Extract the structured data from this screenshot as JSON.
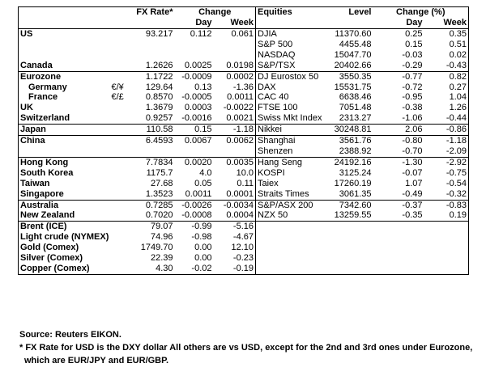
{
  "header": {
    "fx_rate": "FX Rate*",
    "change": "Change",
    "equities": "Equities",
    "level": "Level",
    "change_pct": "Change (%)",
    "day": "Day",
    "week": "Week",
    "day_pct": "Day",
    "week_pct": "Week"
  },
  "groups": [
    [
      {
        "country": "US",
        "fx": "93.217",
        "day": "0.112",
        "week": "0.061",
        "index": "DJIA",
        "level": "11370.60",
        "day_pct": "0.25",
        "week_pct": "0.35"
      },
      {
        "index": "S&P 500",
        "level": "4455.48",
        "day_pct": "0.15",
        "week_pct": "0.51"
      },
      {
        "index": "NASDAQ",
        "level": "15047.70",
        "day_pct": "-0.03",
        "week_pct": "0.02"
      },
      {
        "country": "Canada",
        "fx": "1.2626",
        "day": "0.0025",
        "week": "0.0198",
        "index": "S&P/TSX",
        "level": "20402.66",
        "day_pct": "-0.29",
        "week_pct": "-0.43"
      }
    ],
    [
      {
        "country": "Eurozone",
        "fx": "1.1722",
        "day": "-0.0009",
        "week": "0.0002",
        "index": "DJ Eurostox 50",
        "level": "3550.35",
        "day_pct": "-0.77",
        "week_pct": "0.82"
      },
      {
        "country": "Germany",
        "pair": "€/¥",
        "fx": "129.64",
        "day": "0.13",
        "week": "-1.36",
        "index": "DAX",
        "level": "15531.75",
        "day_pct": "-0.72",
        "week_pct": "0.27"
      },
      {
        "country": "France",
        "pair": "€/£",
        "fx": "0.8570",
        "day": "-0.0005",
        "week": "0.0011",
        "index": "CAC 40",
        "level": "6638.46",
        "day_pct": "-0.95",
        "week_pct": "1.04"
      },
      {
        "country": "UK",
        "fx": "1.3679",
        "day": "0.0003",
        "week": "-0.0022",
        "index": "FTSE 100",
        "level": "7051.48",
        "day_pct": "-0.38",
        "week_pct": "1.26"
      },
      {
        "country": "Switzerland",
        "fx": "0.9257",
        "day": "-0.0016",
        "week": "0.0021",
        "index": "Swiss Mkt Index",
        "level": "2313.27",
        "day_pct": "-1.06",
        "week_pct": "-0.44"
      }
    ],
    [
      {
        "country": "Japan",
        "fx": "110.58",
        "day": "0.15",
        "week": "-1.18",
        "index": "Nikkei",
        "level": "30248.81",
        "day_pct": "2.06",
        "week_pct": "-0.86"
      }
    ],
    [
      {
        "country": "China",
        "fx": "6.4593",
        "day": "0.0067",
        "week": "0.0062",
        "index": "Shanghai",
        "level": "3561.76",
        "day_pct": "-0.80",
        "week_pct": "-1.18"
      },
      {
        "index": "Shenzen",
        "level": "2388.92",
        "day_pct": "-0.70",
        "week_pct": "-2.09"
      }
    ],
    [
      {
        "country": "Hong Kong",
        "fx": "7.7834",
        "day": "0.0020",
        "week": "0.0035",
        "index": "Hang Seng",
        "level": "24192.16",
        "day_pct": "-1.30",
        "week_pct": "-2.92"
      },
      {
        "country": "South Korea",
        "fx": "1175.7",
        "day": "4.0",
        "week": "10.0",
        "index": "KOSPI",
        "level": "3125.24",
        "day_pct": "-0.07",
        "week_pct": "-0.75"
      },
      {
        "country": "Taiwan",
        "fx": "27.68",
        "day": "0.05",
        "week": "0.11",
        "index": "Taiex",
        "level": "17260.19",
        "day_pct": "1.07",
        "week_pct": "-0.54"
      },
      {
        "country": "Singapore",
        "fx": "1.3523",
        "day": "0.0011",
        "week": "0.0001",
        "index": "Straits Times",
        "level": "3061.35",
        "day_pct": "-0.49",
        "week_pct": "-0.32"
      }
    ],
    [
      {
        "country": "Australia",
        "fx": "0.7285",
        "day": "-0.0026",
        "week": "-0.0034",
        "index": "S&P/ASX 200",
        "level": "7342.60",
        "day_pct": "-0.37",
        "week_pct": "-0.83"
      },
      {
        "country": "New Zealand",
        "fx": "0.7020",
        "day": "-0.0008",
        "week": "0.0004",
        "index": "NZX 50",
        "level": "13259.55",
        "day_pct": "-0.35",
        "week_pct": "0.19"
      }
    ],
    [
      {
        "country": "Brent (ICE)",
        "fx": "79.07",
        "day": "-0.99",
        "week": "-5.16"
      },
      {
        "country": "Light crude (NYMEX)",
        "fx": "74.96",
        "day": "-0.98",
        "week": "-4.67"
      },
      {
        "country": "Gold (Comex)",
        "fx": "1749.70",
        "day": "0.00",
        "week": "12.10"
      },
      {
        "country": "Silver (Comex)",
        "fx": "22.39",
        "day": "0.00",
        "week": "-0.23"
      },
      {
        "country": "Copper (Comex)",
        "fx": "4.30",
        "day": "-0.02",
        "week": "-0.19"
      }
    ]
  ],
  "footer": [
    "Source: Reuters EIKON.",
    "* FX Rate for USD is the DXY dollar  All others are vs USD, except for the 2nd and 3rd ones under Eurozone,",
    "which are EUR/JPY and EUR/GBP."
  ]
}
